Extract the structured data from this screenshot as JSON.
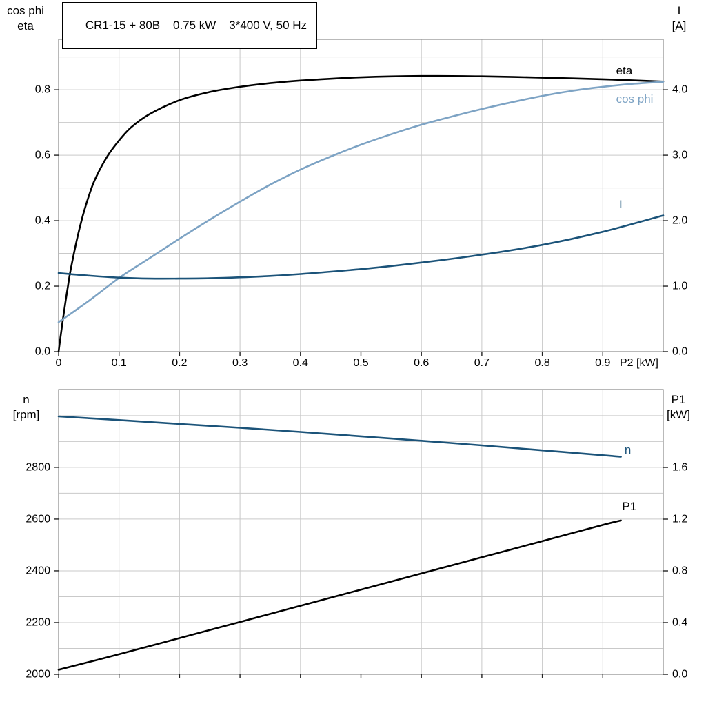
{
  "title_box": "CR1-15 + 80B    0.75 kW    3*400 V, 50 Hz",
  "colors": {
    "eta_p1": "#000000",
    "cos_phi": "#7da3c4",
    "i_n": "#1b5379",
    "grid": "#c9c9c9",
    "frame": "#8a8a8a",
    "tick": "#222222"
  },
  "chart_data": [
    {
      "type": "line",
      "title": "CR1-15 + 80B    0.75 kW    3*400 V, 50 Hz",
      "x_axis": {
        "label": "P2 [kW]",
        "min": 0,
        "max": 1.0,
        "tick_values": [
          0,
          0.1,
          0.2,
          0.3,
          0.4,
          0.5,
          0.6,
          0.7,
          0.8,
          0.9
        ],
        "tick_labels": [
          "0",
          "0.1",
          "0.2",
          "0.3",
          "0.4",
          "0.5",
          "0.6",
          "0.7",
          "0.8",
          "0.9"
        ],
        "grid": true
      },
      "left_axis": {
        "label_lines": [
          "cos phi",
          "eta"
        ],
        "min": 0,
        "max": 0.954,
        "grid_step": 0.1,
        "tick_values": [
          0,
          0.2,
          0.4,
          0.6,
          0.8
        ],
        "tick_labels": [
          "0.0",
          "0.2",
          "0.4",
          "0.6",
          "0.8"
        ]
      },
      "right_axis": {
        "label_lines": [
          "I",
          "[A]"
        ],
        "min": 0,
        "max": 4.77,
        "tick_values": [
          0,
          1,
          2,
          3,
          4
        ],
        "tick_labels": [
          "0.0",
          "1.0",
          "2.0",
          "3.0",
          "4.0"
        ]
      },
      "series": [
        {
          "name": "eta",
          "label": "eta",
          "axis": "left",
          "color_key": "eta_p1",
          "label_at": {
            "x": 0.922,
            "y": 0.858
          },
          "points": {
            "x": [
              0,
              0.005,
              0.01,
              0.015,
              0.02,
              0.03,
              0.04,
              0.05,
              0.06,
              0.08,
              0.1,
              0.12,
              0.15,
              0.2,
              0.25,
              0.3,
              0.35,
              0.4,
              0.5,
              0.6,
              0.7,
              0.8,
              0.9,
              1.0
            ],
            "y": [
              0,
              0.07,
              0.135,
              0.195,
              0.25,
              0.34,
              0.415,
              0.475,
              0.525,
              0.595,
              0.645,
              0.685,
              0.725,
              0.768,
              0.793,
              0.809,
              0.82,
              0.828,
              0.838,
              0.842,
              0.841,
              0.837,
              0.832,
              0.825
            ]
          }
        },
        {
          "name": "cos phi",
          "label": "cos phi",
          "axis": "left",
          "color_key": "cos_phi",
          "label_at": {
            "x": 0.922,
            "y": 0.772
          },
          "points": {
            "x": [
              0,
              0.05,
              0.1,
              0.15,
              0.2,
              0.25,
              0.3,
              0.35,
              0.4,
              0.45,
              0.5,
              0.55,
              0.6,
              0.65,
              0.7,
              0.75,
              0.8,
              0.85,
              0.9,
              0.95,
              1.0
            ],
            "y": [
              0.09,
              0.155,
              0.225,
              0.285,
              0.345,
              0.403,
              0.458,
              0.51,
              0.556,
              0.596,
              0.632,
              0.664,
              0.693,
              0.718,
              0.741,
              0.762,
              0.781,
              0.797,
              0.809,
              0.818,
              0.824
            ]
          }
        },
        {
          "name": "I",
          "label": "I",
          "axis": "right",
          "color_key": "i_n",
          "label_at": {
            "x": 0.927,
            "y": 2.25
          },
          "points": {
            "x": [
              0,
              0.05,
              0.1,
              0.15,
              0.2,
              0.25,
              0.3,
              0.35,
              0.4,
              0.5,
              0.6,
              0.7,
              0.8,
              0.9,
              1.0
            ],
            "y": [
              1.2,
              1.16,
              1.13,
              1.115,
              1.115,
              1.12,
              1.135,
              1.155,
              1.185,
              1.26,
              1.36,
              1.48,
              1.63,
              1.83,
              2.08
            ]
          }
        }
      ]
    },
    {
      "type": "line",
      "x_axis": {
        "label": "",
        "min": 0,
        "max": 1.0,
        "tick_values": [
          0,
          0.1,
          0.2,
          0.3,
          0.4,
          0.5,
          0.6,
          0.7,
          0.8,
          0.9
        ],
        "tick_labels": [],
        "grid": true
      },
      "left_axis": {
        "label_lines": [
          "n",
          "[rpm]"
        ],
        "min": 2000,
        "max": 3101,
        "grid_step": 100,
        "tick_values": [
          2000,
          2200,
          2400,
          2600,
          2800
        ],
        "tick_labels": [
          "2000",
          "2200",
          "2400",
          "2600",
          "2800"
        ]
      },
      "right_axis": {
        "label_lines": [
          "P1",
          "[kW]"
        ],
        "min": 0,
        "max": 2.2027,
        "tick_values": [
          0,
          0.4,
          0.8,
          1.2,
          1.6
        ],
        "tick_labels": [
          "0.0",
          "0.4",
          "0.8",
          "1.2",
          "1.6"
        ]
      },
      "series": [
        {
          "name": "n",
          "label": "n",
          "axis": "left",
          "color_key": "i_n",
          "label_at": {
            "x": 0.936,
            "y": 2868
          },
          "points": {
            "x": [
              0,
              0.1,
              0.2,
              0.3,
              0.4,
              0.5,
              0.6,
              0.7,
              0.8,
              0.9,
              0.93
            ],
            "y": [
              2997,
              2983,
              2968,
              2953,
              2937,
              2920,
              2903,
              2885,
              2866,
              2847,
              2841
            ]
          }
        },
        {
          "name": "P1",
          "label": "P1",
          "axis": "right",
          "color_key": "eta_p1",
          "label_at": {
            "x": 0.932,
            "y": 1.3
          },
          "points": {
            "x": [
              0,
              0.1,
              0.2,
              0.3,
              0.4,
              0.5,
              0.6,
              0.7,
              0.8,
              0.9,
              0.93
            ],
            "y": [
              0.035,
              0.155,
              0.28,
              0.405,
              0.53,
              0.655,
              0.78,
              0.905,
              1.03,
              1.155,
              1.19
            ]
          }
        }
      ]
    }
  ]
}
